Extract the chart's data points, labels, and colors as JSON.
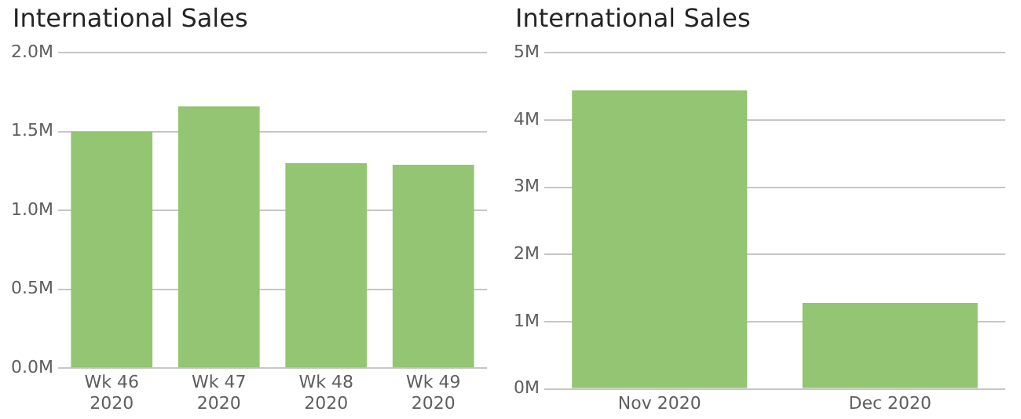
{
  "chart_data": [
    {
      "type": "bar",
      "title": "International Sales",
      "categories": [
        "Wk 46\n2020",
        "Wk 47\n2020",
        "Wk 48\n2020",
        "Wk 49\n2020"
      ],
      "values": [
        1.5,
        1.66,
        1.3,
        1.29
      ],
      "color": "#93c572",
      "ylim": [
        0,
        2
      ],
      "yticks": [
        {
          "value": 0,
          "label": "0.0M"
        },
        {
          "value": 0.5,
          "label": "0.5M"
        },
        {
          "value": 1,
          "label": "1.0M"
        },
        {
          "value": 1.5,
          "label": "1.5M"
        },
        {
          "value": 2,
          "label": "2.0M"
        }
      ],
      "grid": "y",
      "legend": false
    },
    {
      "type": "bar",
      "title": "International Sales",
      "categories": [
        "Nov 2020",
        "Dec 2020"
      ],
      "values": [
        4.44,
        1.28
      ],
      "color": "#93c572",
      "ylim": [
        0,
        5
      ],
      "yticks": [
        {
          "value": 0,
          "label": "0M"
        },
        {
          "value": 1,
          "label": "1M"
        },
        {
          "value": 2,
          "label": "2M"
        },
        {
          "value": 3,
          "label": "3M"
        },
        {
          "value": 4,
          "label": "4M"
        },
        {
          "value": 5,
          "label": "5M"
        }
      ],
      "grid": "y",
      "legend": false
    }
  ]
}
